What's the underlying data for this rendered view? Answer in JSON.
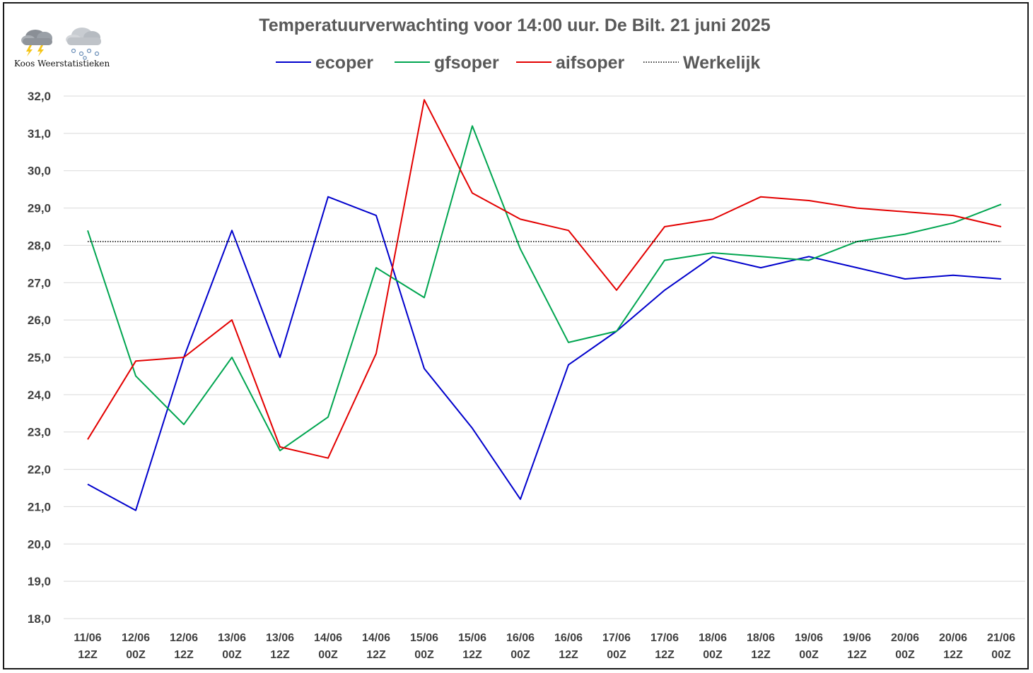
{
  "brand": {
    "name": "Koos Weerstatistieken",
    "icons": [
      "thunderstorm-cloud-icon",
      "snow-cloud-icon"
    ]
  },
  "chart_data": {
    "type": "line",
    "title": "Temperatuurverwachting voor 14:00 uur. De Bilt. 21 juni 2025",
    "xlabel": "",
    "ylabel": "",
    "ylim": [
      18,
      32
    ],
    "grid": true,
    "legend_position": "top",
    "categories": [
      [
        "11/06",
        "12Z"
      ],
      [
        "12/06",
        "00Z"
      ],
      [
        "12/06",
        "12Z"
      ],
      [
        "13/06",
        "00Z"
      ],
      [
        "13/06",
        "12Z"
      ],
      [
        "14/06",
        "00Z"
      ],
      [
        "14/06",
        "12Z"
      ],
      [
        "15/06",
        "00Z"
      ],
      [
        "15/06",
        "12Z"
      ],
      [
        "16/06",
        "00Z"
      ],
      [
        "16/06",
        "12Z"
      ],
      [
        "17/06",
        "00Z"
      ],
      [
        "17/06",
        "12Z"
      ],
      [
        "18/06",
        "00Z"
      ],
      [
        "18/06",
        "12Z"
      ],
      [
        "19/06",
        "00Z"
      ],
      [
        "19/06",
        "12Z"
      ],
      [
        "20/06",
        "00Z"
      ],
      [
        "20/06",
        "12Z"
      ],
      [
        "21/06",
        "00Z"
      ]
    ],
    "yticks": [
      "18,0",
      "19,0",
      "20,0",
      "21,0",
      "22,0",
      "23,0",
      "24,0",
      "25,0",
      "26,0",
      "27,0",
      "28,0",
      "29,0",
      "30,0",
      "31,0",
      "32,0"
    ],
    "series": [
      {
        "name": "ecoper",
        "color": "#0000cc",
        "style": "solid",
        "values": [
          21.6,
          20.9,
          25.0,
          28.4,
          25.0,
          29.3,
          28.8,
          24.7,
          23.1,
          21.2,
          24.8,
          25.7,
          26.8,
          27.7,
          27.4,
          27.7,
          27.4,
          27.1,
          27.2,
          27.1
        ]
      },
      {
        "name": "gfsoper",
        "color": "#00a550",
        "style": "solid",
        "values": [
          28.4,
          24.5,
          23.2,
          25.0,
          22.5,
          23.4,
          27.4,
          26.6,
          31.2,
          27.9,
          25.4,
          25.7,
          27.6,
          27.8,
          27.7,
          27.6,
          28.1,
          28.3,
          28.6,
          29.1
        ]
      },
      {
        "name": "aifsoper",
        "color": "#e30000",
        "style": "solid",
        "values": [
          22.8,
          24.9,
          25.0,
          26.0,
          22.6,
          22.3,
          25.1,
          31.9,
          29.4,
          28.7,
          28.4,
          26.8,
          28.5,
          28.7,
          29.3,
          29.2,
          29.0,
          28.9,
          28.8,
          28.5
        ]
      },
      {
        "name": "Werkelijk",
        "color": "#000000",
        "style": "dotted",
        "values": [
          28.1,
          28.1,
          28.1,
          28.1,
          28.1,
          28.1,
          28.1,
          28.1,
          28.1,
          28.1,
          28.1,
          28.1,
          28.1,
          28.1,
          28.1,
          28.1,
          28.1,
          28.1,
          28.1,
          28.1
        ]
      }
    ]
  }
}
